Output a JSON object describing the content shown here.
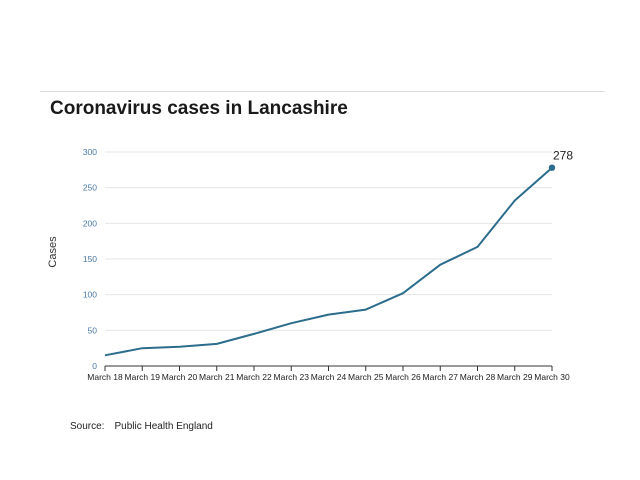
{
  "chart_data": {
    "type": "line",
    "title": "Coronavirus cases in Lancashire",
    "xlabel": "",
    "ylabel": "Cases",
    "categories": [
      "March 18",
      "March 19",
      "March 20",
      "March 21",
      "March 22",
      "March 23",
      "March 24",
      "March 25",
      "March 26",
      "March 27",
      "March 28",
      "March 29",
      "March 30"
    ],
    "series": [
      {
        "values": [
          15,
          25,
          27,
          31,
          45,
          60,
          72,
          79,
          102,
          142,
          167,
          232,
          278
        ]
      }
    ],
    "yticks": [
      "0",
      "50",
      "100",
      "150",
      "200",
      "250",
      "300"
    ],
    "ylim": [
      0,
      300
    ],
    "grid": true,
    "annotations": [
      {
        "category": "March 30",
        "text": "278"
      }
    ],
    "colors": {
      "line": "#2c6c8c",
      "tick_text": "#4a7aa6",
      "grid": "#e6e6e6",
      "axis": "#333333"
    }
  },
  "source": {
    "label": "Source:",
    "text": "Public Health England"
  }
}
